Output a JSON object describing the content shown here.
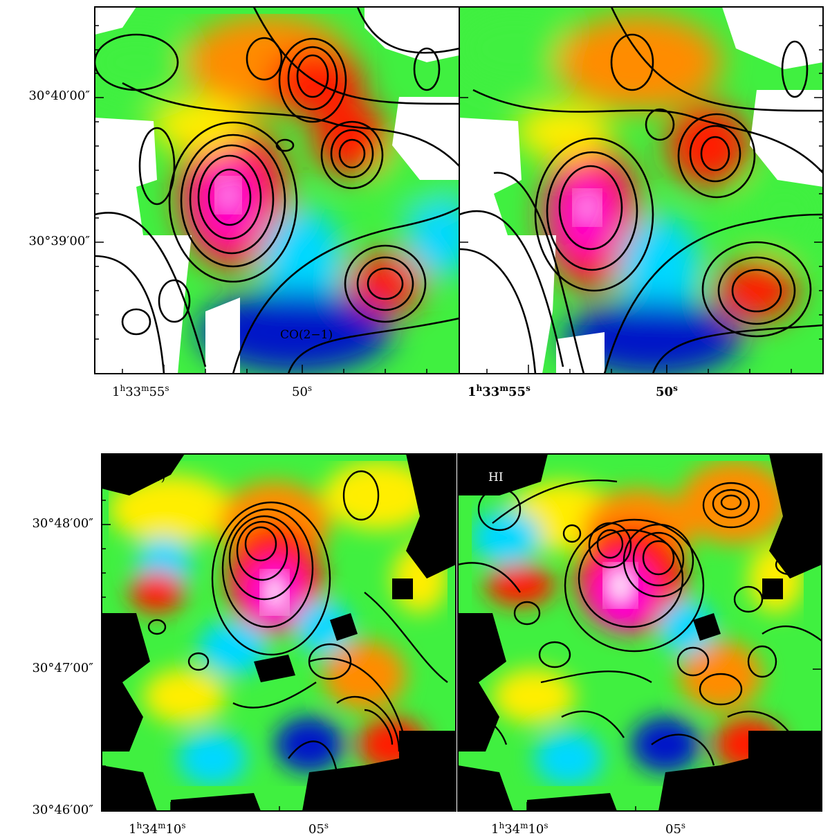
{
  "figure": {
    "top": {
      "left_panel": {
        "annotation": "CO(2−1)"
      },
      "right_panel": {
        "annotation": ""
      },
      "y_ticks": [
        "30°40′00″",
        "30°39′00″"
      ],
      "x_ticks_left": [
        {
          "h": "1",
          "hs": "h",
          "m": "33",
          "ms": "m",
          "s": "55",
          "ss": "s"
        },
        {
          "s": "50",
          "ss": "s"
        }
      ],
      "x_ticks_right": [
        {
          "h": "1",
          "hs": "h",
          "m": "33",
          "ms": "m",
          "s": "55",
          "ss": "s"
        },
        {
          "s": "50",
          "ss": "s"
        }
      ]
    },
    "bottom": {
      "left_panel": {
        "annotation": "CO(2−1)"
      },
      "right_panel": {
        "annotation": "HI"
      },
      "y_ticks": [
        "30°48′00″",
        "30°47′00″",
        "30°46′00″"
      ],
      "x_ticks_left": [
        {
          "h": "1",
          "hs": "h",
          "m": "34",
          "ms": "m",
          "s": "10",
          "ss": "s"
        },
        {
          "s": "05",
          "ss": "s"
        }
      ],
      "x_ticks_right": [
        {
          "h": "1",
          "hs": "h",
          "m": "34",
          "ms": "m",
          "s": "10",
          "ss": "s"
        },
        {
          "s": "05",
          "ss": "s"
        }
      ]
    },
    "colors": {
      "low": "#0018c8",
      "cyan": "#00d8ff",
      "green": "#40f040",
      "yellow": "#ffee00",
      "orange": "#ff8c00",
      "red": "#ff1a00",
      "magenta": "#ff00d0",
      "peak": "#ffffff",
      "blank_top": "#ffffff",
      "blank_bottom": "#000000",
      "contour": "#000000"
    }
  }
}
